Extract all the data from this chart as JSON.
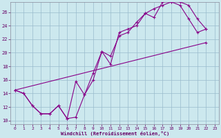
{
  "xlabel": "Windchill (Refroidissement éolien,°C)",
  "background_color": "#cce8ee",
  "line_color": "#880088",
  "grid_color": "#99bbcc",
  "xlim": [
    -0.5,
    23.5
  ],
  "ylim": [
    9.5,
    27.5
  ],
  "xticks": [
    0,
    1,
    2,
    3,
    4,
    5,
    6,
    7,
    8,
    9,
    10,
    11,
    12,
    13,
    14,
    15,
    16,
    17,
    18,
    19,
    20,
    21,
    22,
    23
  ],
  "yticks": [
    10,
    12,
    14,
    16,
    18,
    20,
    22,
    24,
    26
  ],
  "line1_x": [
    0,
    1,
    2,
    3,
    4,
    5,
    6,
    7,
    8,
    9,
    10,
    11,
    12,
    13,
    14,
    15,
    16,
    17,
    18,
    19,
    20,
    21,
    22
  ],
  "line1_y": [
    14.5,
    14.0,
    12.2,
    11.0,
    11.0,
    12.2,
    10.3,
    10.5,
    13.8,
    16.0,
    20.2,
    18.3,
    23.0,
    23.5,
    24.0,
    25.8,
    25.2,
    27.5,
    27.5,
    27.5,
    27.0,
    25.0,
    23.5
  ],
  "line2_x": [
    0,
    1,
    2,
    3,
    4,
    5,
    6,
    7,
    8,
    9,
    10,
    11,
    12,
    13,
    14,
    15,
    16,
    17,
    18,
    19,
    20,
    21,
    22
  ],
  "line2_y": [
    14.5,
    14.0,
    12.2,
    11.0,
    11.0,
    12.2,
    10.3,
    15.8,
    13.8,
    17.0,
    20.2,
    19.5,
    22.5,
    23.0,
    24.5,
    25.8,
    26.5,
    27.0,
    27.5,
    27.0,
    25.0,
    23.0,
    23.5
  ],
  "line3_x": [
    0,
    22
  ],
  "line3_y": [
    14.5,
    21.5
  ]
}
